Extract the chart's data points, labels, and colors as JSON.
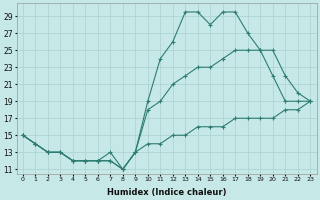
{
  "xlabel": "Humidex (Indice chaleur)",
  "bg_color": "#c6e8e6",
  "grid_color": "#b0d4d2",
  "line_color": "#2e7d72",
  "xlim": [
    -0.5,
    23.5
  ],
  "ylim": [
    10.5,
    30.5
  ],
  "xticks": [
    0,
    1,
    2,
    3,
    4,
    5,
    6,
    7,
    8,
    9,
    10,
    11,
    12,
    13,
    14,
    15,
    16,
    17,
    18,
    19,
    20,
    21,
    22,
    23
  ],
  "yticks": [
    11,
    13,
    15,
    17,
    19,
    21,
    23,
    25,
    27,
    29
  ],
  "series1_x": [
    0,
    1,
    2,
    3,
    4,
    5,
    6,
    7,
    8,
    9,
    10,
    11,
    12,
    13,
    14,
    15,
    16,
    17,
    18,
    19,
    20,
    21,
    22,
    23
  ],
  "series1_y": [
    15,
    14,
    13,
    13,
    12,
    12,
    12,
    13,
    11,
    13,
    19,
    24,
    26,
    29.5,
    29.5,
    28,
    29.5,
    29.5,
    27,
    25,
    25,
    22,
    20,
    19
  ],
  "series2_x": [
    0,
    1,
    2,
    3,
    4,
    5,
    6,
    7,
    8,
    9,
    10,
    11,
    12,
    13,
    14,
    15,
    16,
    17,
    18,
    19,
    20,
    21,
    22,
    23
  ],
  "series2_y": [
    15,
    14,
    13,
    13,
    12,
    12,
    12,
    12,
    11,
    13,
    18,
    19,
    21,
    22,
    23,
    23,
    24,
    25,
    25,
    25,
    22,
    19,
    19,
    19
  ],
  "series3_x": [
    0,
    1,
    2,
    3,
    4,
    5,
    6,
    7,
    8,
    9,
    10,
    11,
    12,
    13,
    14,
    15,
    16,
    17,
    18,
    19,
    20,
    21,
    22,
    23
  ],
  "series3_y": [
    15,
    14,
    13,
    13,
    12,
    12,
    12,
    12,
    11,
    13,
    14,
    14,
    15,
    15,
    16,
    16,
    16,
    17,
    17,
    17,
    17,
    18,
    18,
    19
  ]
}
